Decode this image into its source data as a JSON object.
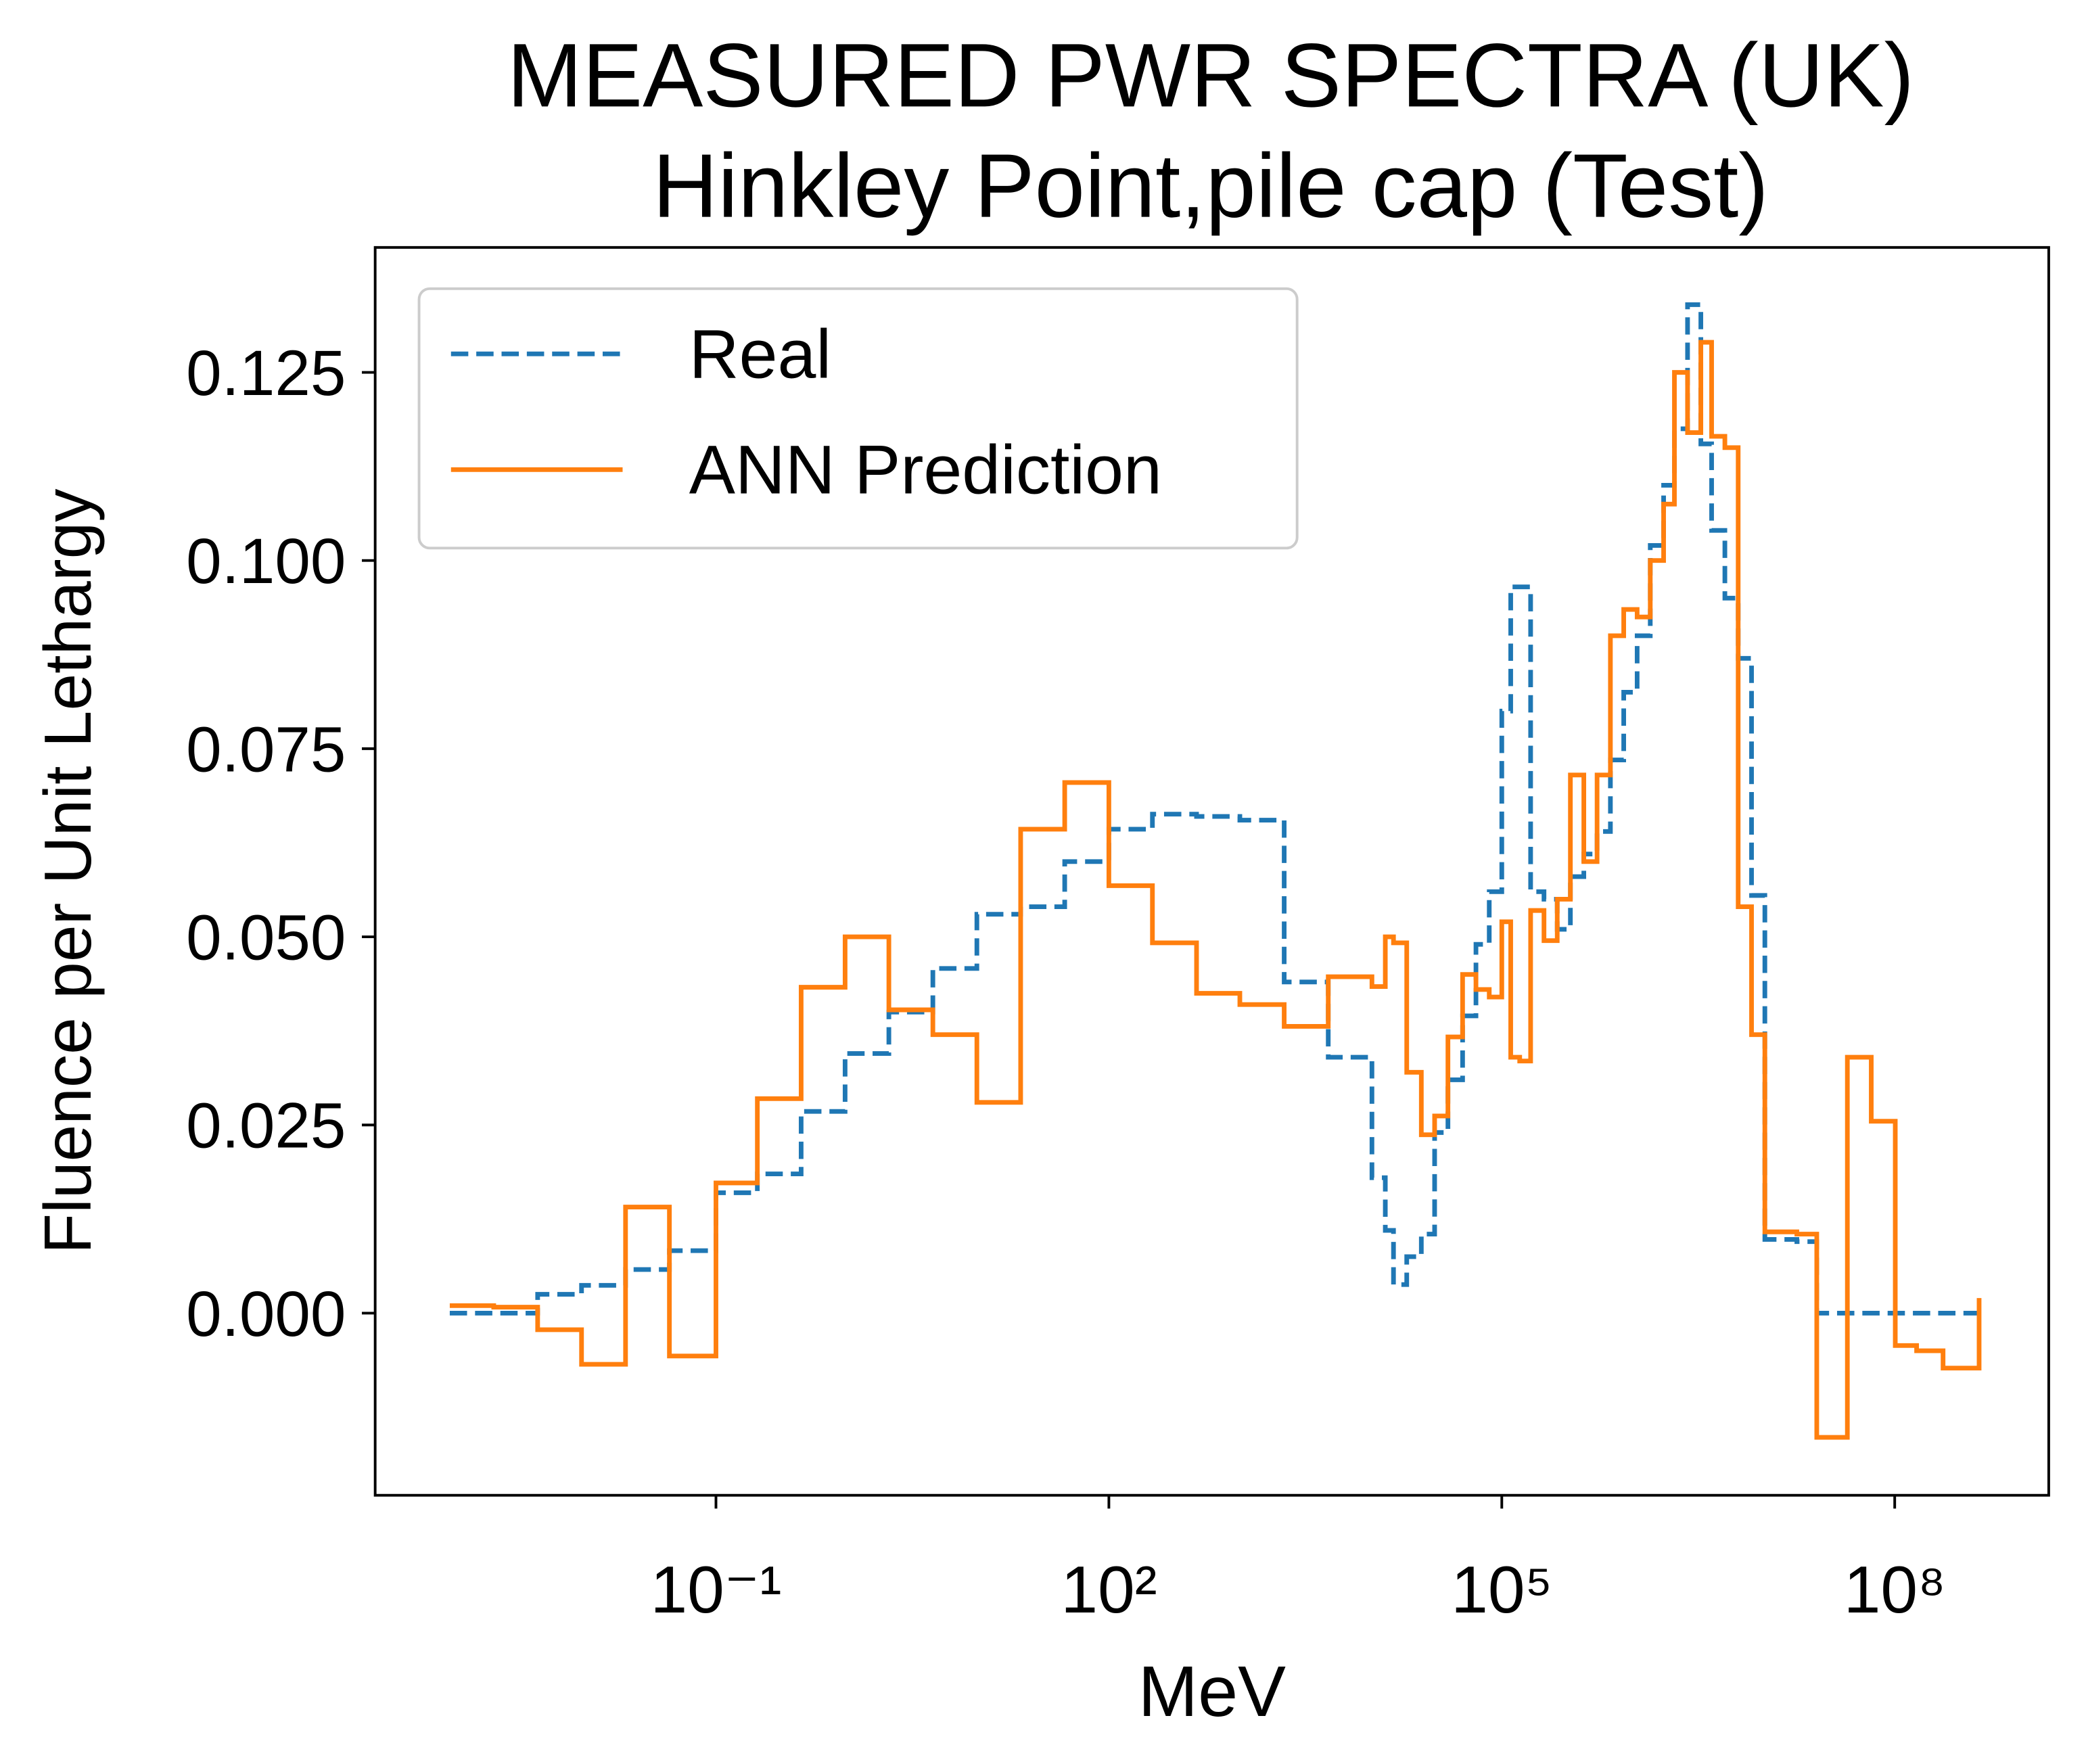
{
  "chart_data": {
    "type": "step",
    "title": "MEASURED PWR SPECTRA (UK)",
    "subtitle": "Hinkley Point,pile cap (Test)",
    "x_label": "MeV",
    "y_label": "Fluence per Unit Lethargy",
    "xscale": "log",
    "step_where": "post",
    "legend_position": "upper left",
    "x": [
      0.000928,
      0.00201,
      0.00435,
      0.00941,
      0.0204,
      0.0441,
      0.1,
      0.207,
      0.447,
      0.968,
      2.09,
      4.53,
      9.82,
      21.2,
      46.0,
      100,
      215,
      467,
      1000,
      2180,
      4730,
      10200,
      12900,
      14900,
      18800,
      24300,
      30700,
      38800,
      50200,
      63500,
      80200,
      100000,
      117000,
      137000,
      166000,
      210000,
      265000,
      334000,
      423000,
      534000,
      675000,
      853000,
      1080000,
      1360000,
      1720000,
      2080000,
      2620000,
      3310000,
      4000000,
      5050000,
      6380000,
      8070000,
      10200000,
      17900000,
      25400000,
      43500000,
      66200000,
      101000000,
      147000000,
      234000000,
      441000000
    ],
    "series": [
      {
        "name": "Real",
        "color": "#1f77b4",
        "dash": "dashed",
        "values": [
          0,
          0,
          0.0025,
          0.0037,
          0.0058,
          0.0083,
          0.016,
          0.0185,
          0.0268,
          0.0345,
          0.04,
          0.0458,
          0.053,
          0.054,
          0.06,
          0.0643,
          0.0663,
          0.066,
          0.0655,
          0.044,
          0.034,
          0.018,
          0.011,
          0.0038,
          0.0075,
          0.0105,
          0.024,
          0.031,
          0.0395,
          0.049,
          0.056,
          0.08,
          0.0965,
          0.0965,
          0.056,
          0.055,
          0.051,
          0.058,
          0.061,
          0.064,
          0.0735,
          0.0825,
          0.09,
          0.102,
          0.11,
          0.1175,
          0.134,
          0.1155,
          0.104,
          0.095,
          0.087,
          0.0555,
          0.0098,
          0.0095,
          0,
          0,
          0,
          0,
          0,
          0,
          0
        ]
      },
      {
        "name": "ANN Prediction",
        "color": "#ff7f0e",
        "dash": "solid",
        "values": [
          0.001,
          0.0008,
          -0.0022,
          -0.0068,
          0.0141,
          -0.0057,
          0.0173,
          0.0285,
          0.0433,
          0.05,
          0.0403,
          0.037,
          0.028,
          0.0643,
          0.0705,
          0.0568,
          0.0492,
          0.0425,
          0.041,
          0.0381,
          0.0447,
          0.0434,
          0.05,
          0.0492,
          0.032,
          0.0237,
          0.0262,
          0.0367,
          0.045,
          0.043,
          0.042,
          0.052,
          0.034,
          0.0335,
          0.0535,
          0.0495,
          0.055,
          0.0715,
          0.06,
          0.0715,
          0.09,
          0.0935,
          0.0925,
          0.1,
          0.1075,
          0.125,
          0.117,
          0.129,
          0.1165,
          0.115,
          0.054,
          0.037,
          0.0108,
          0.0105,
          -0.0165,
          0.034,
          0.0255,
          -0.0043,
          -0.005,
          -0.0073,
          0.002
        ]
      }
    ],
    "xlim": [
      0.00025,
      1500000000
    ],
    "ylim": [
      -0.0242,
      0.1416
    ],
    "xticks": [
      {
        "value": 0.1,
        "label": "10⁻¹"
      },
      {
        "value": 100,
        "label": "10²"
      },
      {
        "value": 100000,
        "label": "10⁵"
      },
      {
        "value": 100000000,
        "label": "10⁸"
      }
    ],
    "yticks": [
      {
        "value": 0,
        "label": "0.000"
      },
      0.025,
      {
        "value": 0.05,
        "label": "0.050"
      },
      0.075,
      {
        "value": 0.1,
        "label": "0.100"
      },
      0.125
    ],
    "grid": false
  }
}
